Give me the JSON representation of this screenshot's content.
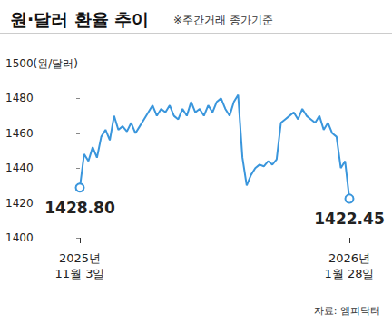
{
  "chart_data": {
    "type": "line",
    "title": "원·달러 환율 추이",
    "subtitle": "※주간거래 종가기준",
    "annotations": [
      "자료: 엠피닥터"
    ],
    "color": "#3a96dc",
    "marker": "circle",
    "grid": false,
    "categories": [
      "2025년\n11월 3일",
      null,
      null,
      null,
      null,
      null,
      null,
      null,
      null,
      null,
      null,
      null,
      null,
      null,
      null,
      null,
      null,
      null,
      null,
      null,
      null,
      null,
      null,
      null,
      null,
      null,
      null,
      null,
      null,
      null,
      null,
      null,
      null,
      null,
      null,
      null,
      null,
      null,
      null,
      null,
      null,
      null,
      null,
      null,
      null,
      null,
      null,
      null,
      null,
      null,
      null,
      null,
      null,
      null,
      null,
      null,
      null,
      null,
      null,
      null,
      null,
      null,
      null,
      "2026년\n1월 28일"
    ],
    "values": [
      1428.8,
      1448,
      1444,
      1452,
      1446,
      1458,
      1462,
      1456,
      1470,
      1462,
      1464,
      1461,
      1466,
      1460,
      1464,
      1468,
      1472,
      1476,
      1470,
      1474,
      1472,
      1476,
      1470,
      1468,
      1474,
      1470,
      1478,
      1472,
      1474,
      1470,
      1476,
      1472,
      1478,
      1480,
      1474,
      1470,
      1478,
      1482,
      1446,
      1430,
      1436,
      1440,
      1442,
      1441,
      1444,
      1442,
      1445,
      1466,
      1468,
      1470,
      1472,
      1468,
      1474,
      1470,
      1468,
      1466,
      1470,
      1462,
      1466,
      1460,
      1458,
      1440,
      1444,
      1422.45
    ],
    "value_labels": [
      "1428.80",
      null,
      null,
      null,
      null,
      null,
      null,
      null,
      null,
      null,
      null,
      null,
      null,
      null,
      null,
      null,
      null,
      null,
      null,
      null,
      null,
      null,
      null,
      null,
      null,
      null,
      null,
      null,
      null,
      null,
      null,
      null,
      null,
      null,
      null,
      null,
      null,
      null,
      null,
      null,
      null,
      null,
      null,
      null,
      null,
      null,
      null,
      null,
      null,
      null,
      null,
      null,
      null,
      null,
      null,
      null,
      null,
      null,
      null,
      null,
      null,
      null,
      null,
      "1422.45"
    ],
    "data_labels": true,
    "ylim": [
      1400,
      1500
    ],
    "yticks": [
      1400,
      1420,
      1440,
      1460,
      1480,
      {
        "value": 1500,
        "label": "1500(원/달러)"
      }
    ]
  }
}
